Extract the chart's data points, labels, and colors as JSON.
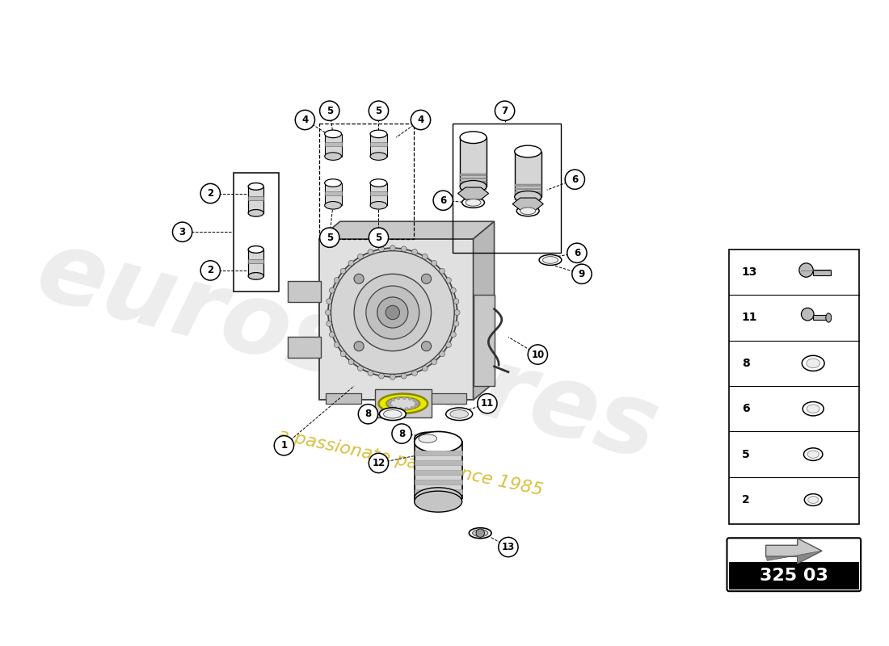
{
  "bg_color": "#ffffff",
  "part_code": "325 03",
  "watermark_text": "eurospares",
  "watermark_sub": "a passionate parts since 1985",
  "legend_items": [
    "13",
    "11",
    "8",
    "6",
    "5",
    "2"
  ],
  "main_color": "#d0d0d0",
  "edge_color": "#444444",
  "line_color": "#222222"
}
